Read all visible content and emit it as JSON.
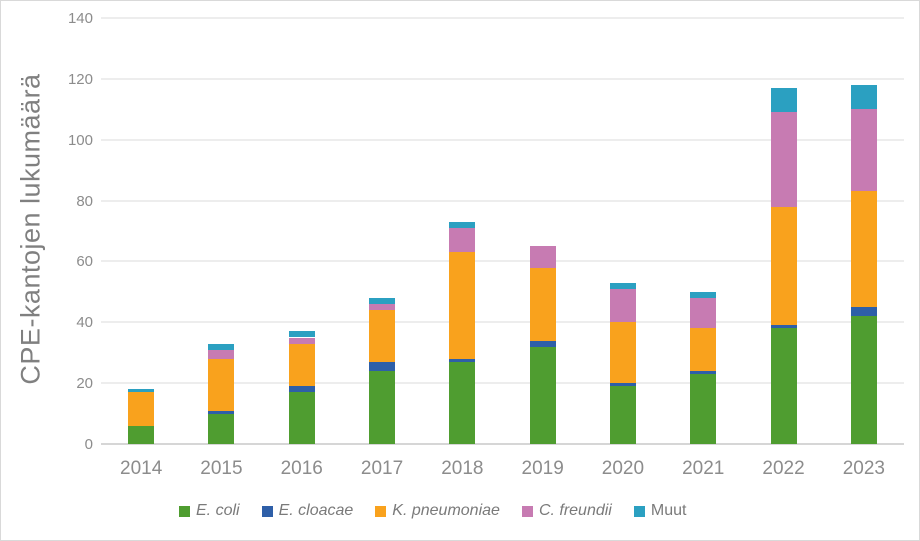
{
  "chart_data": {
    "type": "bar",
    "stacked": true,
    "title": "",
    "ylabel": "CPE-kantojen lukumäärä",
    "xlabel": "",
    "categories": [
      "2014",
      "2015",
      "2016",
      "2017",
      "2018",
      "2019",
      "2020",
      "2021",
      "2022",
      "2023"
    ],
    "series": [
      {
        "name": "E. coli",
        "italic": true,
        "color": "#4F9D30",
        "values": [
          6,
          10,
          17,
          24,
          27,
          32,
          19,
          23,
          38,
          42
        ]
      },
      {
        "name": "E. cloacae",
        "italic": true,
        "color": "#2E5FA8",
        "values": [
          0,
          1,
          2,
          3,
          1,
          2,
          1,
          1,
          1,
          3
        ]
      },
      {
        "name": "K. pneumoniae",
        "italic": true,
        "color": "#F9A21D",
        "values": [
          11,
          17,
          14,
          17,
          35,
          24,
          20,
          14,
          39,
          38
        ]
      },
      {
        "name": "C. freundii",
        "italic": true,
        "color": "#C77BB2",
        "values": [
          0,
          3,
          2,
          2,
          8,
          7,
          11,
          10,
          31,
          27
        ]
      },
      {
        "name": "Muut",
        "italic": false,
        "color": "#2BA0C1",
        "values": [
          1,
          2,
          2,
          2,
          2,
          0,
          2,
          2,
          8,
          8
        ]
      }
    ],
    "totals": [
      18,
      33,
      37,
      48,
      73,
      65,
      53,
      50,
      117,
      118
    ],
    "ylim": [
      0,
      140
    ],
    "yticks": [
      0,
      20,
      40,
      60,
      80,
      100,
      120,
      140
    ],
    "grid": "horizontal",
    "legend_position": "bottom"
  },
  "theme": {
    "tick_text_color": "#8C8C8C",
    "axis_title_color": "#808080",
    "legend_text_color": "#7A7A7A",
    "gridline_color": "#EDEDED",
    "axis_line_color": "#D6D6D6",
    "chart_border_color": "#D9D9D9",
    "background_color": "#FFFFFF"
  }
}
